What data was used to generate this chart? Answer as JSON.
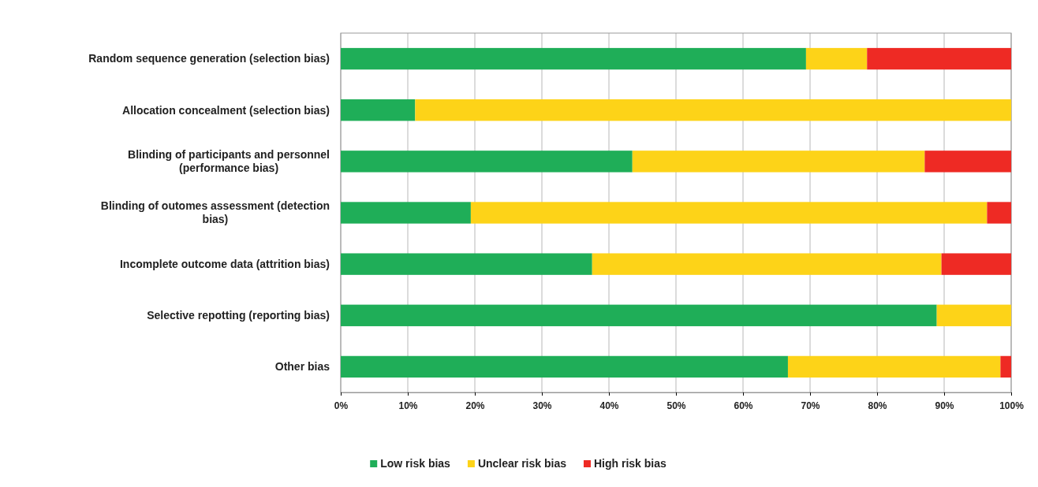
{
  "chart_data": {
    "type": "bar",
    "orientation": "horizontal",
    "stacked": true,
    "categories": [
      "Random sequence generation (selection bias)",
      "Allocation concealment (selection bias)",
      "Blinding of participants and personnel (performance bias)",
      "Blinding of outomes assessment (detection bias)",
      "Incomplete outcome data (attrition bias)",
      "Selective repotting (reporting bias)",
      "Other bias"
    ],
    "series": [
      {
        "name": "Low risk bias",
        "color": "#1fae58",
        "values": [
          69.4,
          11.1,
          43.5,
          19.4,
          37.5,
          88.9,
          66.7
        ]
      },
      {
        "name": "Unclear risk bias",
        "color": "#fdd318",
        "values": [
          9.1,
          88.9,
          43.6,
          77.0,
          52.1,
          11.1,
          31.7
        ]
      },
      {
        "name": "High risk bias",
        "color": "#ee2a24",
        "values": [
          21.5,
          0,
          12.9,
          3.6,
          10.4,
          0,
          1.6
        ]
      }
    ],
    "xlim": [
      0,
      100
    ],
    "xticks": [
      {
        "value": 0,
        "label": "0%"
      },
      {
        "value": 10,
        "label": "10%"
      },
      {
        "value": 20,
        "label": "20%"
      },
      {
        "value": 30,
        "label": "30%"
      },
      {
        "value": 40,
        "label": "40%"
      },
      {
        "value": 50,
        "label": "50%"
      },
      {
        "value": 60,
        "label": "60%"
      },
      {
        "value": 70,
        "label": "70%"
      },
      {
        "value": 80,
        "label": "80%"
      },
      {
        "value": 90,
        "label": "90%"
      },
      {
        "value": 100,
        "label": "100%"
      }
    ],
    "grid": "x",
    "legend": "bottom"
  }
}
